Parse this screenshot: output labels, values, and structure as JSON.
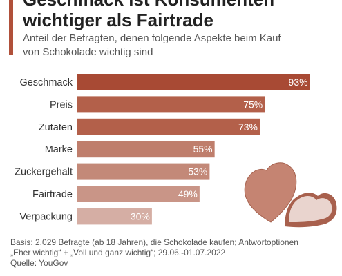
{
  "header": {
    "title_line1": "Geschmack ist Konsumenten",
    "title_line2": "wichtiger als Fairtrade",
    "subtitle_line1": "Anteil der Befragten, denen folgende Aspekte beim Kauf",
    "subtitle_line2": "von Schokolade wichtig sind"
  },
  "colors": {
    "accent": "#b0503a",
    "bars": [
      "#a84a34",
      "#b3604a",
      "#b3604a",
      "#bf7e6c",
      "#c38978",
      "#c99587",
      "#d5aea4"
    ]
  },
  "chart_data": {
    "type": "bar",
    "orientation": "horizontal",
    "categories": [
      "Geschmack",
      "Preis",
      "Zutaten",
      "Marke",
      "Zuckergehalt",
      "Fairtrade",
      "Verpackung"
    ],
    "values": [
      93,
      75,
      73,
      55,
      53,
      49,
      30
    ],
    "value_labels": [
      "93%",
      "75%",
      "73%",
      "55%",
      "53%",
      "49%",
      "30%"
    ],
    "unit": "%",
    "xlim": [
      0,
      100
    ],
    "grid": false,
    "legend": "none"
  },
  "footer": {
    "basis_line1": "Basis: 2.029 Befragte (ab 18 Jahren), die Schokolade kaufen; Antwortoptionen",
    "basis_line2": "„Eher wichtig“ + „Voll und ganz wichtig“; 29.06.-01.07.2022",
    "source": "Quelle: YouGov"
  },
  "illustration": {
    "icon": "chocolate-hearts-icon"
  }
}
